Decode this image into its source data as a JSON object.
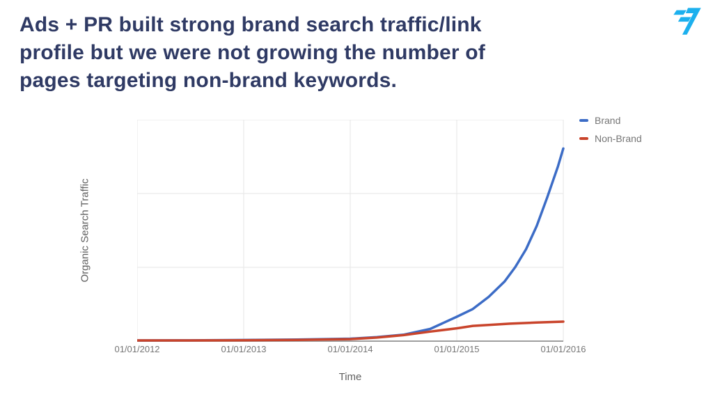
{
  "slide": {
    "title_lines": [
      "Ads + PR built strong brand search traffic/link",
      "profile but we were not growing the number of",
      "pages targeting non-brand keywords."
    ],
    "title_color": "#2f3a64"
  },
  "logo": {
    "name": "transferwise-fast-flag",
    "color": "#1cb0ee"
  },
  "chart_data": {
    "type": "line",
    "title": "",
    "xlabel": "Time",
    "ylabel": "Organic Search Traffic",
    "x_tick_labels": [
      "01/01/2012",
      "01/01/2013",
      "01/01/2014",
      "01/01/2015",
      "01/01/2016"
    ],
    "x_tick_values": [
      2012,
      2013,
      2014,
      2015,
      2016
    ],
    "xlim": [
      2012,
      2016
    ],
    "ylim": [
      0,
      100
    ],
    "y_tick_labels_visible": false,
    "grid": {
      "horizontal_divisions": 3,
      "vertical_divisions": 4,
      "grid_color": "#e6e6e6",
      "axis_line_color": "#9e9e9e"
    },
    "legend_position": "top-right",
    "series": [
      {
        "name": "Brand",
        "color": "#3c6cc6",
        "x": [
          2012.0,
          2012.5,
          2013.0,
          2013.5,
          2014.0,
          2014.25,
          2014.5,
          2014.75,
          2015.0,
          2015.15,
          2015.3,
          2015.45,
          2015.55,
          2015.65,
          2015.75,
          2015.85,
          2015.95,
          2016.0
        ],
        "values": [
          0.3,
          0.35,
          0.5,
          0.7,
          1.1,
          1.8,
          2.9,
          5.5,
          11,
          14.5,
          20,
          27,
          33.5,
          41.5,
          52,
          65,
          79,
          87
        ]
      },
      {
        "name": "Non-Brand",
        "color": "#c9442b",
        "x": [
          2012.0,
          2012.5,
          2013.0,
          2013.5,
          2014.0,
          2014.25,
          2014.5,
          2014.75,
          2015.0,
          2015.15,
          2015.3,
          2015.5,
          2015.75,
          2016.0
        ],
        "values": [
          0.3,
          0.3,
          0.4,
          0.55,
          0.9,
          1.6,
          2.7,
          4.3,
          5.8,
          6.9,
          7.3,
          7.9,
          8.4,
          8.8
        ]
      }
    ]
  }
}
